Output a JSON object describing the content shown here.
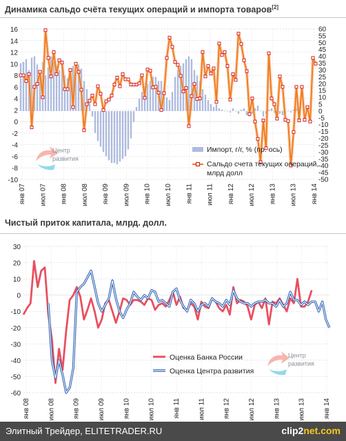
{
  "footer": {
    "site": "Элитный Трейдер, ELITETRADER.RU",
    "logo_main": "clip2",
    "logo_suffix": "net.com"
  },
  "watermark": {
    "line1": "Центр",
    "line2": "развития"
  },
  "chart_data": [
    {
      "type": "bar+line",
      "title": "Динамика сальдо счёта текущих операций и импорта товаров",
      "title_sup": "[2]",
      "x_tick_labels": [
        "янв 07",
        "июл 07",
        "янв 08",
        "июл 08",
        "янв 09",
        "июл 09",
        "янв 10",
        "июл 10",
        "янв 11",
        "июл 11",
        "янв 12",
        "июл 12",
        "янв 13",
        "июл 13",
        "янв 14"
      ],
      "ylim_left": [
        -10,
        16
      ],
      "left_ticks": [
        -10,
        -8,
        -6,
        -4,
        -2,
        0,
        2,
        4,
        6,
        8,
        10,
        12,
        14,
        16
      ],
      "ylim_right": [
        -50,
        60
      ],
      "right_ticks": [
        -50,
        -45,
        -40,
        -35,
        -30,
        -25,
        -20,
        -15,
        -10,
        -5,
        0,
        5,
        10,
        15,
        20,
        25,
        30,
        35,
        40,
        45,
        50,
        55,
        60
      ],
      "grid": true,
      "legend_position": "bottom-right",
      "series": [
        {
          "name": "Импорт, г/г,  % (пр. ось)",
          "kind": "bar",
          "axis": "right",
          "color": "#aebbdf",
          "values": [
            35,
            36,
            38,
            30,
            39,
            40,
            34,
            30,
            36,
            26,
            32,
            40,
            36,
            33,
            30,
            34,
            26,
            24,
            29,
            33,
            28,
            34,
            31,
            22,
            16,
            6,
            -4,
            -16,
            -22,
            -26,
            -30,
            -33,
            -36,
            -38,
            -38,
            -39,
            -37,
            -35,
            -33,
            -28,
            -20,
            -8,
            3,
            9,
            14,
            18,
            20,
            22,
            25,
            25,
            22,
            22,
            15,
            10,
            8,
            14,
            25,
            30,
            33,
            35,
            38,
            40,
            38,
            30,
            26,
            22,
            16,
            12,
            8,
            5,
            3,
            5,
            2,
            1,
            0,
            0,
            -1,
            2,
            0,
            -2,
            1,
            2,
            -3,
            -4,
            -2,
            2,
            4,
            0,
            -4,
            -2,
            1,
            2,
            -1,
            -3,
            -2,
            -3,
            -2,
            0,
            -1,
            1,
            2,
            3
          ]
        },
        {
          "name": "Сальдо счета текущих операций,  млрд долл",
          "kind": "line",
          "axis": "left",
          "color": "#f07c22",
          "marker_color": "#d62020",
          "values": [
            8.0,
            8.0,
            7.0,
            8.2,
            -1.0,
            6.0,
            6.5,
            8.6,
            4.2,
            15.8,
            11.0,
            7.8,
            12.0,
            8.2,
            10.6,
            10.2,
            5.6,
            5.6,
            8.9,
            2.5,
            10.0,
            8.6,
            5.5,
            -1.5,
            3.0,
            3.6,
            4.5,
            3.0,
            6.1,
            4.8,
            2.0,
            3.5,
            3.8,
            4.5,
            6.4,
            7.6,
            6.1,
            8.2,
            7.3,
            7.3,
            6.4,
            6.4,
            6.4,
            6.6,
            8.0,
            4.1,
            9.0,
            8.8,
            5.9,
            6.0,
            5.0,
            2.0,
            4.9,
            11.0,
            14.5,
            12.9,
            10.3,
            9.8,
            7.9,
            5.2,
            5.8,
            -0.8,
            4.4,
            6.5,
            3.9,
            4.0,
            12.0,
            7.8,
            9.6,
            8.3,
            9.2,
            3.4,
            13.5,
            11.5,
            12.0,
            9.6,
            3.8,
            8.2,
            7.2,
            15.2,
            13.4,
            10.6,
            8.7,
            1.3,
            4.0,
            0.0,
            -3.0,
            -7.0,
            0.2,
            -4.6,
            11.8,
            4.0,
            3.0,
            0.5,
            7.8,
            6.0,
            0.3,
            0.1,
            -7.6,
            -1.8,
            6.0,
            0.2,
            6.0,
            0.3,
            2.5,
            0.0,
            11.0,
            10.0
          ]
        }
      ]
    },
    {
      "type": "line",
      "title": "Чистый приток капитала, млрд. долл.",
      "x_tick_labels": [
        "янв 08",
        "июл 08",
        "янв 09",
        "июл 09",
        "янв 10",
        "июл 10",
        "янв 11",
        "июл 11",
        "янв 12",
        "июл 12",
        "янв 13",
        "июл 13",
        "янв 14"
      ],
      "ylim": [
        -60,
        30
      ],
      "ticks": [
        -60,
        -50,
        -40,
        -30,
        -20,
        -10,
        0,
        10,
        20,
        30
      ],
      "grid": true,
      "legend_position": "bottom-center",
      "series": [
        {
          "name": "Оценка Банка России",
          "color": "#e85060",
          "values": [
            -12,
            -8,
            -5,
            21,
            5,
            15,
            17,
            -12,
            -27,
            -54,
            -33,
            -46,
            -22,
            -3,
            0,
            5,
            -1,
            -15,
            -9,
            -2,
            -10,
            -20,
            -15,
            -5,
            -3,
            -10,
            -17,
            -10,
            -2,
            -3,
            -6,
            -3,
            -3,
            -4,
            -6,
            -2,
            -3,
            -9,
            -6,
            -5,
            -7,
            -3,
            2,
            -6,
            -1,
            -8,
            -9,
            -5,
            -7,
            -15,
            -4,
            -7,
            -8,
            -2,
            -4,
            -8,
            -10,
            -6,
            -12,
            5,
            -5,
            -3,
            -4,
            -7,
            -15,
            -6,
            -4,
            -8,
            -2,
            -18,
            -4,
            -5,
            -2,
            -6,
            -10,
            -2,
            -5,
            10,
            -7,
            -7,
            -4,
            3
          ]
        },
        {
          "name": "Оценка Центра развития",
          "color": "#2a5fb2",
          "values": [
            null,
            null,
            null,
            null,
            null,
            null,
            null,
            -5,
            -40,
            -51,
            -40,
            -49,
            -60,
            -57,
            -45,
            2,
            5,
            7,
            11,
            15,
            5,
            -5,
            -10,
            -6,
            -2,
            9,
            -2,
            -10,
            -14,
            -9,
            -5,
            2,
            -1,
            -3,
            0,
            -2,
            3,
            2,
            -4,
            -3,
            -5,
            -7,
            2,
            4,
            -3,
            -7,
            -10,
            -3,
            -5,
            -10,
            -6,
            -5,
            -7,
            -2,
            -4,
            -5,
            -7,
            -3,
            -6,
            3,
            -2,
            -4,
            -5,
            -5,
            -7,
            -5,
            -4,
            -4,
            -3,
            -5,
            -5,
            -7,
            -3,
            -7,
            -5,
            2,
            -3,
            -3,
            -6,
            -4,
            -6,
            -4,
            -4,
            -10,
            -4,
            -15,
            -20
          ],
          "values_start_index": 0
        }
      ]
    }
  ]
}
